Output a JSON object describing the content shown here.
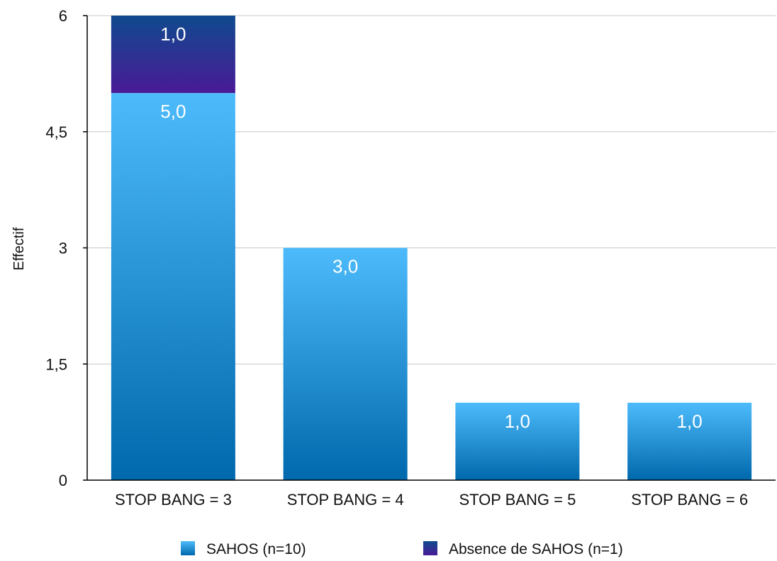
{
  "chart_data": {
    "type": "bar",
    "stacked": true,
    "categories": [
      "STOP BANG = 3",
      "STOP BANG = 4",
      "STOP BANG = 5",
      "STOP BANG = 6"
    ],
    "series": [
      {
        "name": "SAHOS (n=10)",
        "values": [
          5,
          3,
          1,
          1
        ],
        "labels": [
          "5,0",
          "3,0",
          "1,0",
          "1,0"
        ],
        "color_top": "#4dbbfb",
        "color_bottom": "#0068ac"
      },
      {
        "name": "Absence de SAHOS (n=1)",
        "values": [
          1,
          0,
          0,
          0
        ],
        "labels": [
          "1,0",
          "",
          "",
          ""
        ],
        "color_top": "#0f4a8e",
        "color_bottom": "#4a1a96"
      }
    ],
    "ylabel": "Effectif",
    "xlabel": "",
    "ylim": [
      0,
      6
    ],
    "yticks": [
      0,
      1.5,
      3,
      4.5,
      6
    ],
    "ytick_labels": [
      "0",
      "1,5",
      "3",
      "4,5",
      "6"
    ],
    "grid": true,
    "legend": "bottom"
  }
}
